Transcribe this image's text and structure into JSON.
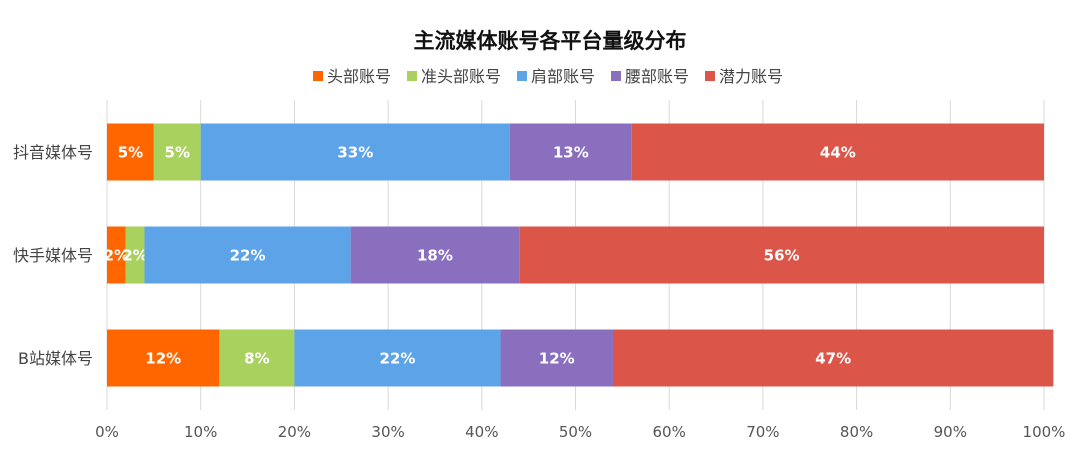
{
  "chart_data": {
    "type": "bar",
    "orientation": "horizontal",
    "stacked": true,
    "title": "主流媒体账号各平台量级分布",
    "categories": [
      "抖音媒体号",
      "快手媒体号",
      "B站媒体号"
    ],
    "series": [
      {
        "name": "头部账号",
        "color": "#FF6600",
        "values": [
          5,
          2,
          12
        ],
        "labels": [
          "5%",
          "2%",
          "12%"
        ]
      },
      {
        "name": "准头部账号",
        "color": "#A9D15E",
        "values": [
          5,
          2,
          8
        ],
        "labels": [
          "5%",
          "2%",
          "8%"
        ]
      },
      {
        "name": "肩部账号",
        "color": "#5DA3E8",
        "values": [
          33,
          22,
          22
        ],
        "labels": [
          "33%",
          "22%",
          "22%"
        ]
      },
      {
        "name": "腰部账号",
        "color": "#8B6FBF",
        "values": [
          13,
          18,
          12
        ],
        "labels": [
          "13%",
          "18%",
          "12%"
        ]
      },
      {
        "name": "潜力账号",
        "color": "#DB5549",
        "values": [
          44,
          56,
          47
        ],
        "labels": [
          "44%",
          "56%",
          "47%"
        ]
      }
    ],
    "xlim": [
      0,
      100
    ],
    "xticks": [
      "0%",
      "10%",
      "20%",
      "30%",
      "40%",
      "50%",
      "60%",
      "70%",
      "80%",
      "90%",
      "100%"
    ],
    "grid": true,
    "legend": "top"
  }
}
